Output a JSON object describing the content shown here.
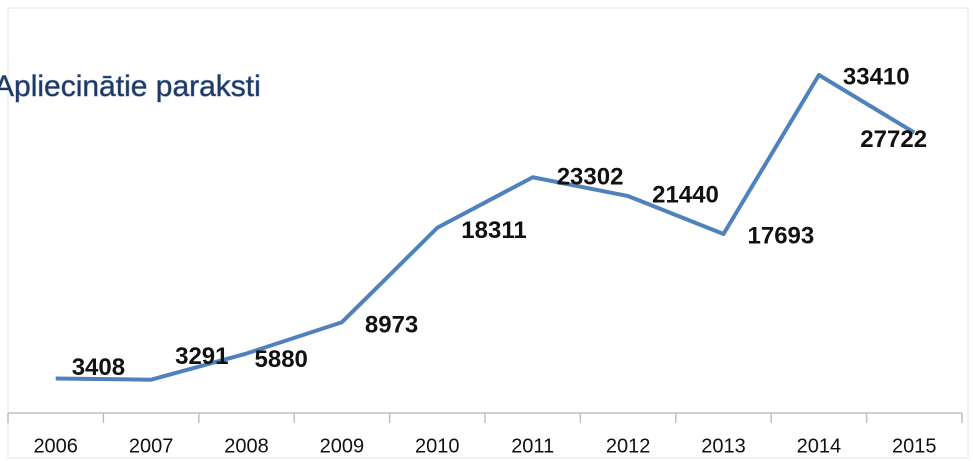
{
  "chart_data": {
    "type": "line",
    "title": "Apliecinātie paraksti",
    "categories": [
      "2006",
      "2007",
      "2008",
      "2009",
      "2010",
      "2011",
      "2012",
      "2013",
      "2014",
      "2015"
    ],
    "values": [
      3408,
      3291,
      5880,
      8973,
      18311,
      23302,
      21440,
      17693,
      33410,
      27722
    ],
    "color": "#4f81bd"
  }
}
